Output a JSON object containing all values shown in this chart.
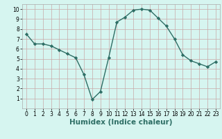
{
  "x": [
    0,
    1,
    2,
    3,
    4,
    5,
    6,
    7,
    8,
    9,
    10,
    11,
    12,
    13,
    14,
    15,
    16,
    17,
    18,
    19,
    20,
    21,
    22,
    23
  ],
  "y": [
    7.5,
    6.5,
    6.5,
    6.3,
    5.9,
    5.5,
    5.1,
    3.4,
    0.9,
    1.7,
    5.1,
    8.7,
    9.2,
    9.9,
    10.0,
    9.9,
    9.1,
    8.3,
    7.0,
    5.4,
    4.8,
    4.5,
    4.2,
    4.7
  ],
  "line_color": "#2e6e65",
  "marker": "D",
  "marker_size": 2.2,
  "bg_color": "#d6f5f0",
  "grid_color": "#c8a8a8",
  "xlabel": "Humidex (Indice chaleur)",
  "xlim": [
    -0.5,
    23.5
  ],
  "ylim": [
    0,
    10.5
  ],
  "yticks": [
    1,
    2,
    3,
    4,
    5,
    6,
    7,
    8,
    9,
    10
  ],
  "xticks": [
    0,
    1,
    2,
    3,
    4,
    5,
    6,
    7,
    8,
    9,
    10,
    11,
    12,
    13,
    14,
    15,
    16,
    17,
    18,
    19,
    20,
    21,
    22,
    23
  ],
  "tick_labelsize": 5.5,
  "xlabel_fontsize": 7.5,
  "linewidth": 1.0
}
